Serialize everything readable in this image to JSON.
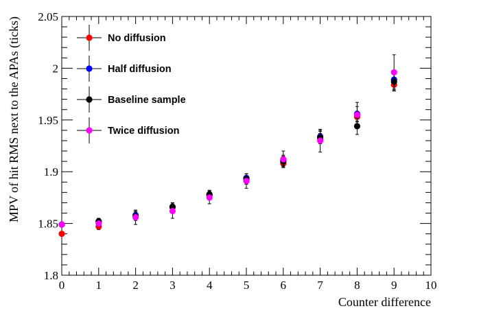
{
  "chart_data": {
    "type": "scatter",
    "title": "",
    "xlabel": "Counter difference",
    "ylabel": "MPV of hit RMS next to the APAs (ticks)",
    "xlim": [
      0,
      10
    ],
    "ylim": [
      1.8,
      2.05
    ],
    "xticks": [
      "0",
      "1",
      "2",
      "3",
      "4",
      "5",
      "6",
      "7",
      "8",
      "9",
      "10"
    ],
    "yticks": [
      "1.8",
      "1.85",
      "1.9",
      "1.95",
      "2",
      "2.05"
    ],
    "grid": false,
    "legend_position": "top-left",
    "series": [
      {
        "name": "No diffusion",
        "color": "#ff0000",
        "x": [
          0,
          1,
          2,
          3,
          4,
          5,
          6,
          7,
          8,
          9
        ],
        "y": [
          1.84,
          1.847,
          1.857,
          1.866,
          1.877,
          1.892,
          1.908,
          1.932,
          1.953,
          1.984
        ],
        "err": [
          0.001,
          0.003,
          0.004,
          0.004,
          0.004,
          0.004,
          0.004,
          0.005,
          0.005,
          0.006
        ]
      },
      {
        "name": "Half diffusion",
        "color": "#0000ff",
        "x": [
          0,
          1,
          2,
          3,
          4,
          5,
          6,
          7,
          8,
          9
        ],
        "y": [
          1.849,
          1.852,
          1.858,
          1.866,
          1.878,
          1.894,
          1.911,
          1.934,
          1.956,
          1.989
        ],
        "err": [
          0.001,
          0.003,
          0.004,
          0.004,
          0.004,
          0.004,
          0.005,
          0.006,
          0.007,
          0.009
        ]
      },
      {
        "name": "Baseline sample",
        "color": "#000000",
        "x": [
          0,
          1,
          2,
          3,
          4,
          5,
          6,
          7,
          8,
          9
        ],
        "y": [
          1.849,
          1.852,
          1.857,
          1.866,
          1.878,
          1.893,
          1.91,
          1.933,
          1.944,
          1.987
        ],
        "err": [
          0.001,
          0.003,
          0.004,
          0.004,
          0.004,
          0.005,
          0.005,
          0.006,
          0.008,
          0.009
        ]
      },
      {
        "name": "Twice diffusion",
        "color": "#ff00ff",
        "x": [
          0,
          1,
          2,
          3,
          4,
          5,
          6,
          7,
          8,
          9
        ],
        "y": [
          1.849,
          1.85,
          1.856,
          1.862,
          1.875,
          1.891,
          1.912,
          1.93,
          1.955,
          1.996
        ],
        "err": [
          0.001,
          0.003,
          0.007,
          0.007,
          0.006,
          0.007,
          0.008,
          0.011,
          0.012,
          0.017
        ]
      }
    ]
  }
}
